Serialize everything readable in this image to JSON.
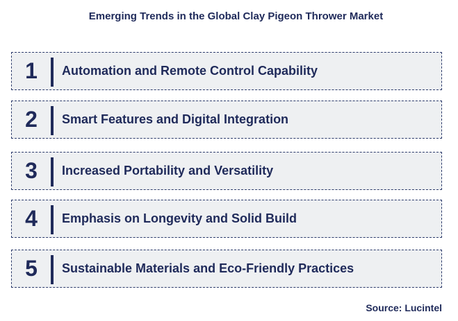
{
  "title": "Emerging Trends in the Global Clay Pigeon Thrower Market",
  "items": [
    {
      "number": "1",
      "label": "Automation and Remote Control Capability"
    },
    {
      "number": "2",
      "label": "Smart Features and Digital Integration"
    },
    {
      "number": "3",
      "label": "Increased Portability and Versatility"
    },
    {
      "number": "4",
      "label": "Emphasis on Longevity and Solid Build"
    },
    {
      "number": "5",
      "label": "Sustainable Materials and Eco-Friendly Practices"
    }
  ],
  "source": "Source: Lucintel",
  "colors": {
    "text": "#1f2a5a",
    "box_fill": "#eef0f2",
    "box_border": "#2b3a6b"
  }
}
